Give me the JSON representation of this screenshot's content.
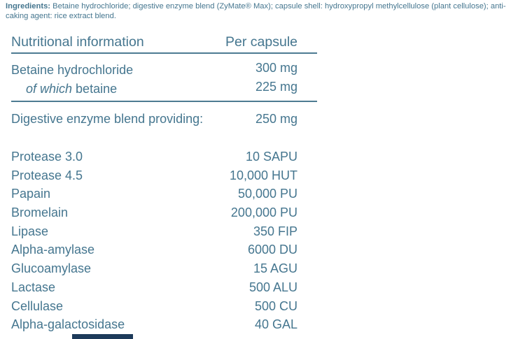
{
  "colors": {
    "text": "#45768f",
    "rule": "#4d7b92",
    "bottom_bar": "#1d3a5a",
    "background": "#ffffff"
  },
  "ingredients": {
    "label": "Ingredients:",
    "text": " Betaine hydrochloride; digestive enzyme blend (ZyMate® Max); capsule shell: hydroxypropyl methylcellulose (plant cellulose); anti-caking agent: rice extract blend."
  },
  "table": {
    "headers": {
      "name": "Nutritional information",
      "amount": "Per capsule"
    },
    "betaine_rows": [
      {
        "label": "Betaine hydrochloride",
        "value": "300 mg"
      },
      {
        "label_italic": "of which",
        "label": " betaine",
        "value": "225 mg"
      }
    ],
    "blend_row": {
      "label": "Digestive enzyme blend providing:",
      "value": "250 mg"
    },
    "enzymes": [
      {
        "label": "Protease 3.0",
        "value": "10 SAPU"
      },
      {
        "label": "Protease 4.5",
        "value": "10,000 HUT"
      },
      {
        "label": "Papain",
        "value": "50,000 PU"
      },
      {
        "label": "Bromelain",
        "value": "200,000 PU"
      },
      {
        "label": "Lipase",
        "value": "350 FIP"
      },
      {
        "label": "Alpha-amylase",
        "value": "6000 DU"
      },
      {
        "label": "Glucoamylase",
        "value": "15 AGU"
      },
      {
        "label": "Lactase",
        "value": "500 ALU"
      },
      {
        "label": "Cellulase",
        "value": "500 CU"
      },
      {
        "label": "Alpha-galactosidase",
        "value": "40 GAL"
      }
    ]
  }
}
